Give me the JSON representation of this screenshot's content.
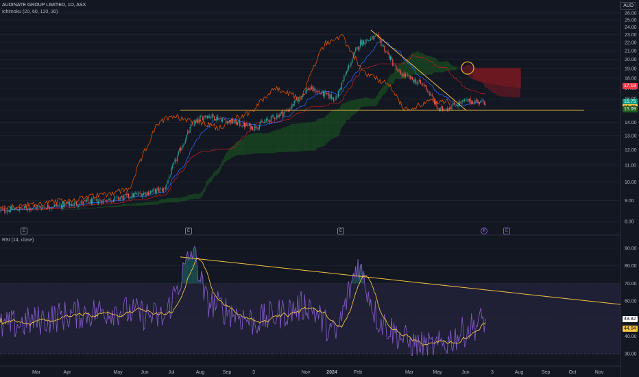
{
  "header": {
    "symbol_line": "AUDINATE GROUP LIMITED, 1D, ASX",
    "indicator_line": "Ichimoku (20, 60, 120, 30)",
    "rsi_line": "RSI (14, close)",
    "currency": "AUD"
  },
  "colors": {
    "background": "#131722",
    "bull_candle": "#26a69a",
    "bear_candle": "#ef5350",
    "conversion_line": "#2962ff",
    "base_line": "#b71c1c",
    "lagging_span": "#e65100",
    "cloud_bull": "#1b5e20",
    "cloud_bear": "#801922",
    "trendline": "#f5c242",
    "rsi_line": "#7e57c2",
    "rsi_ma": "#f5c242"
  },
  "events": [
    {
      "label": "E",
      "type": "earnings"
    },
    {
      "label": "E",
      "type": "earnings"
    },
    {
      "label": "E",
      "type": "earnings"
    },
    {
      "label": "₽",
      "type": "dividend"
    },
    {
      "label": "E",
      "type": "earnings"
    }
  ],
  "x_axis_labels": [
    "Mar",
    "Apr",
    "May",
    "Jun",
    "Jul",
    "Aug",
    "Sep",
    "3",
    "Nov",
    "2024",
    "Feb",
    "Mar",
    "May",
    "Jun",
    "3",
    "Aug",
    "Sep",
    "Oct",
    "Nov"
  ],
  "price_badges": [
    {
      "value": "17.19",
      "color": "#f23645",
      "text_color": "#ffffff"
    },
    {
      "value": "15.75",
      "color": "#089981",
      "text_color": "#ffffff"
    },
    {
      "value": "15.25",
      "color": "#f5c242",
      "text_color": "#131722"
    },
    {
      "value": "15.09",
      "color": "#1b5e20",
      "text_color": "#ffffff"
    }
  ],
  "rsi_badges": [
    {
      "value": "49.82",
      "color": "#ffffff",
      "text_color": "#131722"
    },
    {
      "value": "44.04",
      "color": "#f5c242",
      "text_color": "#131722"
    }
  ],
  "chart_data": [
    {
      "type": "candlestick",
      "title": "AUDINATE GROUP LIMITED, 1D, ASX",
      "ylim": [
        7,
        26.5
      ],
      "y_ticks": [
        "7.00",
        "8.00",
        "9.00",
        "10.00",
        "11.00",
        "12.00",
        "13.00",
        "14.00",
        "15.00",
        "16.00",
        "17.00",
        "18.00",
        "19.00",
        "20.00",
        "21.00",
        "22.00",
        "23.00",
        "24.00",
        "25.00",
        "26.00"
      ],
      "y_scale": "log",
      "close_anchors": {
        "month": [
          "Feb 2023",
          "Apr 2023",
          "Jun 2023",
          "Aug 2023",
          "Aug 2023",
          "Sep 2023",
          "Nov 2023",
          "Dec 2023",
          "Jan 2024",
          "Feb 2024",
          "Mar 2024",
          "Mar 2024",
          "Apr 2024",
          "May 2024",
          "May 2024",
          "Jun 2024",
          "Jul 2024"
        ],
        "close": [
          8.5,
          8.8,
          9.1,
          9.6,
          13.8,
          14.6,
          13.6,
          15.0,
          17.0,
          16.0,
          22.0,
          22.7,
          18.6,
          17.2,
          15.0,
          15.8,
          15.75
        ]
      },
      "horizontal_support": 15.0,
      "descending_trendline": {
        "start": 23.6,
        "end": 15.0
      },
      "cloud_projection_bear": {
        "upper": 19.0,
        "lower": 17.0
      }
    },
    {
      "type": "line",
      "title": "RSI (14, close)",
      "ylim": [
        27,
        92
      ],
      "y_ticks": [
        "30.00",
        "40.00",
        "50.00",
        "60.00",
        "70.00",
        "80.00",
        "90.00"
      ],
      "overbought": 70,
      "oversold": 30,
      "middle": 50,
      "last_rsi": 49.82,
      "last_ma": 44.04,
      "rsi_anchors": {
        "month": [
          "Feb 2023",
          "Apr 2023",
          "Jun 2023",
          "Aug 2023",
          "Aug 2023",
          "Sep 2023",
          "Nov 2023",
          "Jan 2024",
          "Feb 2024",
          "Mar 2024",
          "Apr 2024",
          "May 2024",
          "Jun 2024",
          "Jul 2024"
        ],
        "rsi": [
          45,
          52,
          55,
          50,
          90,
          60,
          48,
          58,
          40,
          82,
          50,
          35,
          33,
          49.82
        ]
      },
      "descending_trendline": {
        "start": 85,
        "end": 58
      }
    }
  ]
}
